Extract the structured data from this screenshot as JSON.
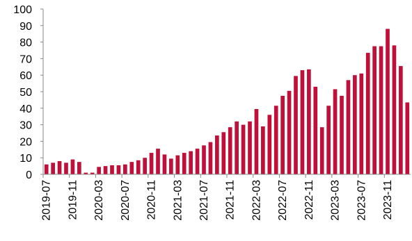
{
  "chart_data": {
    "type": "bar",
    "categories": [
      "2019-07",
      null,
      null,
      null,
      "2019-11",
      null,
      null,
      null,
      "2020-03",
      null,
      null,
      null,
      "2020-07",
      null,
      null,
      null,
      "2020-11",
      null,
      null,
      null,
      "2021-03",
      null,
      null,
      null,
      "2021-07",
      null,
      null,
      null,
      "2021-11",
      null,
      null,
      null,
      "2022-03",
      null,
      null,
      null,
      "2022-07",
      null,
      null,
      null,
      "2022-11",
      null,
      null,
      null,
      "2023-03",
      null,
      null,
      null,
      "2023-07",
      null,
      null,
      null,
      "2023-11",
      null,
      null,
      null
    ],
    "values": [
      6,
      7,
      8,
      7,
      9,
      7.5,
      1,
      1,
      4.5,
      5,
      5.5,
      5.5,
      6,
      7.5,
      8.5,
      10,
      13,
      15.5,
      12,
      9.5,
      11.5,
      13,
      14,
      15.5,
      17.5,
      19.5,
      23.5,
      25.5,
      28.5,
      32,
      30,
      32,
      39.5,
      29,
      36,
      41.5,
      47.5,
      50.5,
      59.5,
      63,
      63.5,
      53,
      28.5,
      41.5,
      51.5,
      47.5,
      57,
      60,
      61,
      73.5,
      77.5,
      77.5,
      88,
      78,
      65.5,
      43.5
    ],
    "color": "#c0103a",
    "ylim": [
      0,
      100
    ],
    "yticks": [
      0,
      10,
      20,
      30,
      40,
      50,
      60,
      70,
      80,
      90,
      100
    ]
  }
}
